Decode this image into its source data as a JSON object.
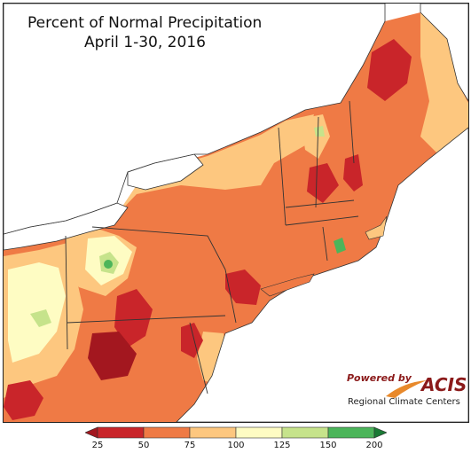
{
  "title": {
    "line1": "Percent of Normal Precipitation",
    "line2": "April 1-30, 2016"
  },
  "credit": {
    "powered": "Powered by",
    "acis": "ACIS",
    "rcc": "Regional Climate Centers",
    "accent_color": "#8b1a1a",
    "swoosh_color": "#e8892b"
  },
  "legend": {
    "ticks": [
      "25",
      "50",
      "75",
      "100",
      "125",
      "150",
      "200"
    ],
    "bins": [
      {
        "range": "<25",
        "color": "#a3171f"
      },
      {
        "range": "25-50",
        "color": "#c9252a"
      },
      {
        "range": "50-75",
        "color": "#ef7a45"
      },
      {
        "range": "75-100",
        "color": "#fdc77f"
      },
      {
        "range": "100-125",
        "color": "#fefcc3"
      },
      {
        "range": "125-150",
        "color": "#c6e38b"
      },
      {
        "range": "150-200",
        "color": "#4cb55a"
      },
      {
        "range": ">200",
        "color": "#1a7a35"
      }
    ]
  },
  "map": {
    "water_color": "#ffffff",
    "canada_color": "#ffffff",
    "border_color": "#333333"
  }
}
